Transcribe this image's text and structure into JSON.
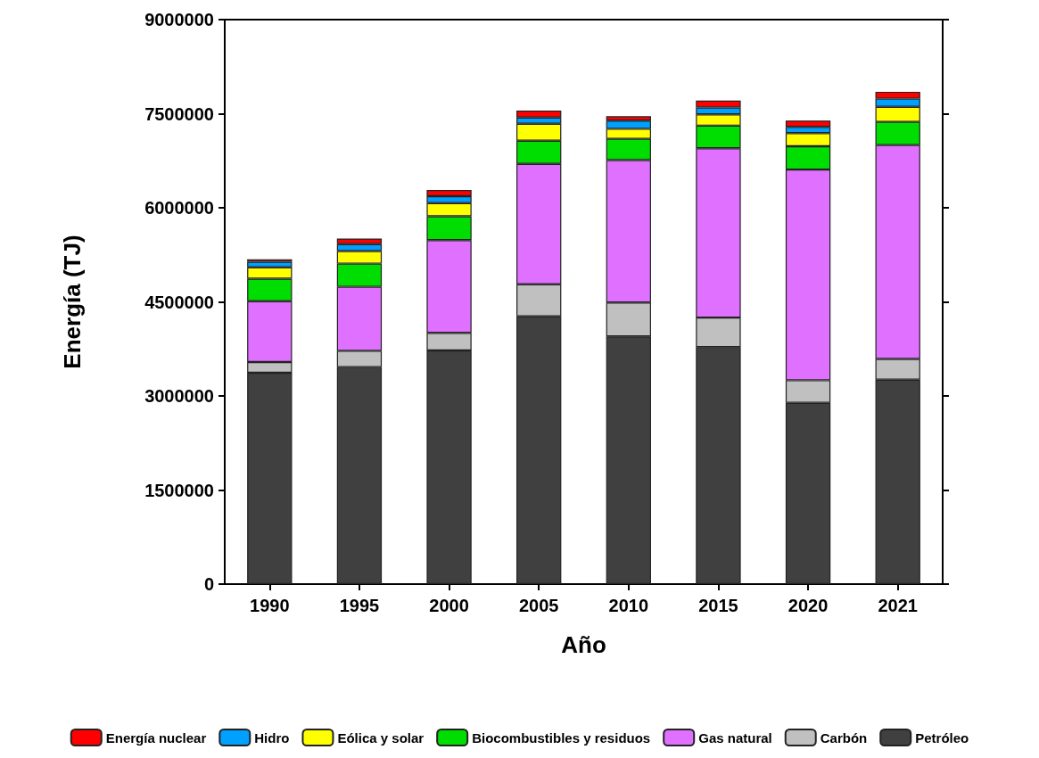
{
  "chart_data": {
    "type": "bar",
    "stacked": true,
    "xlabel": "Año",
    "ylabel": "Energía (TJ)",
    "categories": [
      "1990",
      "1995",
      "2000",
      "2005",
      "2010",
      "2015",
      "2020",
      "2021"
    ],
    "ylim": [
      0,
      9000000
    ],
    "yticks": [
      0,
      1500000,
      3000000,
      4500000,
      6000000,
      7500000,
      9000000
    ],
    "grid": false,
    "legend": "bottom",
    "series": [
      {
        "name": "Petróleo",
        "color": "#404040",
        "values": [
          3370000,
          3460000,
          3725000,
          4270000,
          3950000,
          3780000,
          2890000,
          3260000
        ]
      },
      {
        "name": "Carbón",
        "color": "#c0c0c0",
        "values": [
          170000,
          260000,
          280000,
          510000,
          540000,
          470000,
          360000,
          330000
        ]
      },
      {
        "name": "Gas natural",
        "color": "#e070ff",
        "values": [
          970000,
          1020000,
          1480000,
          1920000,
          2270000,
          2700000,
          3360000,
          3410000
        ]
      },
      {
        "name": "Biocombustibles y residuos",
        "color": "#00dd00",
        "values": [
          360000,
          370000,
          380000,
          370000,
          340000,
          360000,
          370000,
          370000
        ]
      },
      {
        "name": "Eólica y solar",
        "color": "#ffff00",
        "values": [
          180000,
          200000,
          210000,
          270000,
          160000,
          180000,
          210000,
          240000
        ]
      },
      {
        "name": "Hidro",
        "color": "#00a0ff",
        "values": [
          90000,
          110000,
          110000,
          100000,
          130000,
          110000,
          100000,
          130000
        ]
      },
      {
        "name": "Energía nuclear",
        "color": "#ff0000",
        "values": [
          40000,
          90000,
          100000,
          110000,
          70000,
          110000,
          100000,
          110000
        ]
      }
    ]
  }
}
